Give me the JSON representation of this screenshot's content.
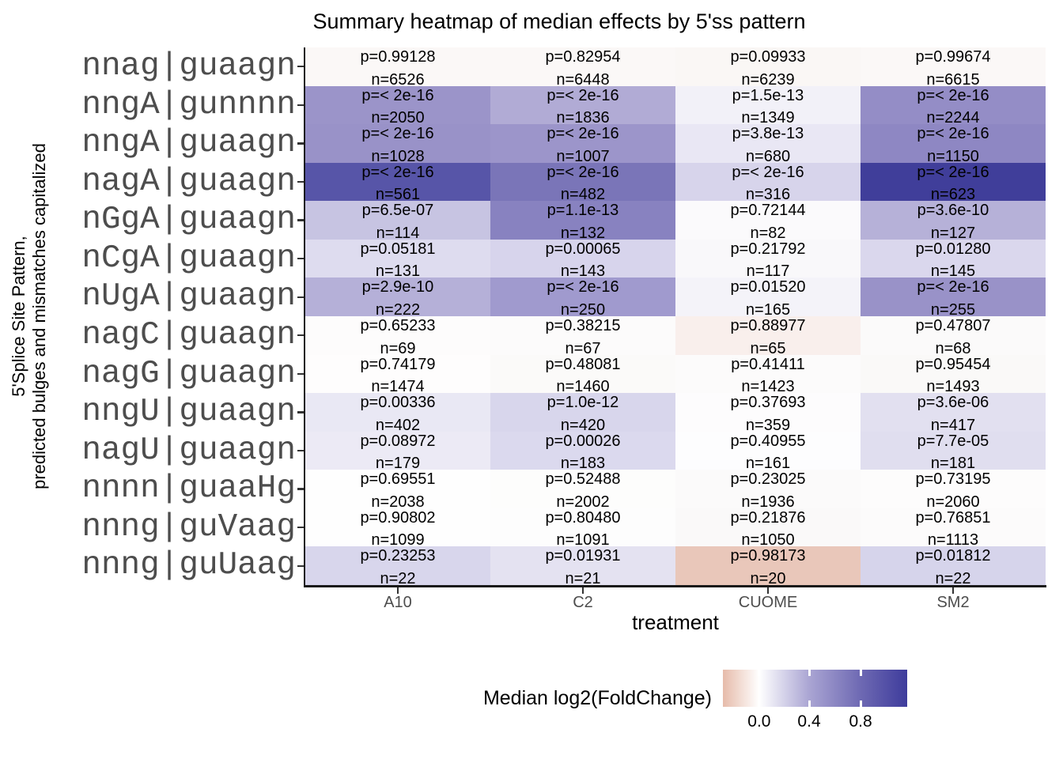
{
  "chart_data": {
    "type": "heatmap",
    "title": "Summary heatmap of median effects by 5'ss pattern",
    "xlabel": "treatment",
    "ylabel_line1": "5'Splice Site Pattern,",
    "ylabel_line2": "predicted bulges and mismatches capitalized",
    "columns": [
      "A10",
      "C2",
      "CUOME",
      "SM2"
    ],
    "rows": [
      {
        "pattern": "nnag|guaagn",
        "cells": [
          {
            "p": "p=0.99128",
            "n": "n=6526",
            "color": "#fbf8f7"
          },
          {
            "p": "p=0.82954",
            "n": "n=6448",
            "color": "#fbf8f7"
          },
          {
            "p": "p=0.09933",
            "n": "n=6239",
            "color": "#faf7f5"
          },
          {
            "p": "p=0.99674",
            "n": "n=6615",
            "color": "#fbf8f7"
          }
        ]
      },
      {
        "pattern": "nngA|gunnnn",
        "cells": [
          {
            "p": "p=< 2e-16",
            "n": "n=2050",
            "color": "#9b94c9"
          },
          {
            "p": "p=< 2e-16",
            "n": "n=1836",
            "color": "#b1abd5"
          },
          {
            "p": "p=1.5e-13",
            "n": "n=1349",
            "color": "#f2f1f8"
          },
          {
            "p": "p=< 2e-16",
            "n": "n=2244",
            "color": "#948dc6"
          }
        ]
      },
      {
        "pattern": "nngA|guaagn",
        "cells": [
          {
            "p": "p=< 2e-16",
            "n": "n=1028",
            "color": "#9992c8"
          },
          {
            "p": "p=< 2e-16",
            "n": "n=1007",
            "color": "#9c95ca"
          },
          {
            "p": "p=3.8e-13",
            "n": "n=680",
            "color": "#e9e7f4"
          },
          {
            "p": "p=< 2e-16",
            "n": "n=1150",
            "color": "#8e87c3"
          }
        ]
      },
      {
        "pattern": "nagA|guaagn",
        "cells": [
          {
            "p": "p=< 2e-16",
            "n": "n=561",
            "color": "#5755a8"
          },
          {
            "p": "p=< 2e-16",
            "n": "n=482",
            "color": "#7a75b8"
          },
          {
            "p": "p=< 2e-16",
            "n": "n=316",
            "color": "#d7d4eb"
          },
          {
            "p": "p=< 2e-16",
            "n": "n=623",
            "color": "#403e9a"
          }
        ]
      },
      {
        "pattern": "nGgA|guaagn",
        "cells": [
          {
            "p": "p=6.5e-07",
            "n": "n=114",
            "color": "#c7c4e2"
          },
          {
            "p": "p=1.1e-13",
            "n": "n=132",
            "color": "#8882c0"
          },
          {
            "p": "p=0.72144",
            "n": "n=82",
            "color": "#fbfafc"
          },
          {
            "p": "p=3.6e-10",
            "n": "n=127",
            "color": "#b6b1d8"
          }
        ]
      },
      {
        "pattern": "nCgA|guaagn",
        "cells": [
          {
            "p": "p=0.05181",
            "n": "n=131",
            "color": "#dedcef"
          },
          {
            "p": "p=0.00065",
            "n": "n=143",
            "color": "#d7d4ec"
          },
          {
            "p": "p=0.21792",
            "n": "n=117",
            "color": "#f9f8fa"
          },
          {
            "p": "p=0.01280",
            "n": "n=145",
            "color": "#dad7ed"
          }
        ]
      },
      {
        "pattern": "nUgA|guaagn",
        "cells": [
          {
            "p": "p=2.9e-10",
            "n": "n=222",
            "color": "#b5b0d8"
          },
          {
            "p": "p=< 2e-16",
            "n": "n=250",
            "color": "#a09ace"
          },
          {
            "p": "p=0.01520",
            "n": "n=165",
            "color": "#f4f3f9"
          },
          {
            "p": "p=< 2e-16",
            "n": "n=255",
            "color": "#9992c8"
          }
        ]
      },
      {
        "pattern": "nagC|guaagn",
        "cells": [
          {
            "p": "p=0.65233",
            "n": "n=69",
            "color": "#fdfcfc"
          },
          {
            "p": "p=0.38215",
            "n": "n=67",
            "color": "#fcfbfb"
          },
          {
            "p": "p=0.88977",
            "n": "n=65",
            "color": "#f9efec"
          },
          {
            "p": "p=0.47807",
            "n": "n=68",
            "color": "#fbfafa"
          }
        ]
      },
      {
        "pattern": "nagG|guaagn",
        "cells": [
          {
            "p": "p=0.74179",
            "n": "n=1474",
            "color": "#fefdfd"
          },
          {
            "p": "p=0.48081",
            "n": "n=1460",
            "color": "#fbfaf9"
          },
          {
            "p": "p=0.41411",
            "n": "n=1423",
            "color": "#fcfbfb"
          },
          {
            "p": "p=0.95454",
            "n": "n=1493",
            "color": "#faf9f8"
          }
        ]
      },
      {
        "pattern": "nngU|guaagn",
        "cells": [
          {
            "p": "p=0.00336",
            "n": "n=402",
            "color": "#e9e8f4"
          },
          {
            "p": "p=1.0e-12",
            "n": "n=420",
            "color": "#d8d6ec"
          },
          {
            "p": "p=0.37693",
            "n": "n=359",
            "color": "#fdfcfd"
          },
          {
            "p": "p=3.6e-06",
            "n": "n=417",
            "color": "#e2e0f0"
          }
        ]
      },
      {
        "pattern": "nagU|guaagn",
        "cells": [
          {
            "p": "p=0.08972",
            "n": "n=179",
            "color": "#eceaf5"
          },
          {
            "p": "p=0.00026",
            "n": "n=183",
            "color": "#dbd9ee"
          },
          {
            "p": "p=0.40955",
            "n": "n=161",
            "color": "#fdfdfe"
          },
          {
            "p": "p=7.7e-05",
            "n": "n=181",
            "color": "#e0deef"
          }
        ]
      },
      {
        "pattern": "nnnn|guaaHg",
        "cells": [
          {
            "p": "p=0.69551",
            "n": "n=2038",
            "color": "#fefefe"
          },
          {
            "p": "p=0.52488",
            "n": "n=2002",
            "color": "#fdfdfc"
          },
          {
            "p": "p=0.23025",
            "n": "n=1936",
            "color": "#fbfafa"
          },
          {
            "p": "p=0.73195",
            "n": "n=2060",
            "color": "#fdfcfc"
          }
        ]
      },
      {
        "pattern": "nnng|guVaag",
        "cells": [
          {
            "p": "p=0.90802",
            "n": "n=1099",
            "color": "#fefefe"
          },
          {
            "p": "p=0.80480",
            "n": "n=1091",
            "color": "#fdfdfd"
          },
          {
            "p": "p=0.21876",
            "n": "n=1050",
            "color": "#faf9f9"
          },
          {
            "p": "p=0.76851",
            "n": "n=1113",
            "color": "#fcfbfb"
          }
        ]
      },
      {
        "pattern": "nnng|guUaag",
        "cells": [
          {
            "p": "p=0.23253",
            "n": "n=22",
            "color": "#d8d6ec"
          },
          {
            "p": "p=0.01931",
            "n": "n=21",
            "color": "#e4e2f1"
          },
          {
            "p": "p=0.98173",
            "n": "n=20",
            "color": "#e9c7ba"
          },
          {
            "p": "p=0.01812",
            "n": "n=22",
            "color": "#d6d4eb"
          }
        ]
      }
    ],
    "legend": {
      "title": "Median log2(FoldChange)",
      "ticks": [
        {
          "label": "0.0",
          "pos_pct": 19.7
        },
        {
          "label": "0.4",
          "pos_pct": 46.8
        },
        {
          "label": "0.8",
          "pos_pct": 74.7
        }
      ],
      "gradient_stops": [
        {
          "color": "#e6bbaa",
          "pos_pct": 0
        },
        {
          "color": "#ffffff",
          "pos_pct": 19.7
        },
        {
          "color": "#aaa5d3",
          "pos_pct": 46.8
        },
        {
          "color": "#6e69b3",
          "pos_pct": 74.7
        },
        {
          "color": "#3e3c9c",
          "pos_pct": 100
        }
      ]
    }
  }
}
